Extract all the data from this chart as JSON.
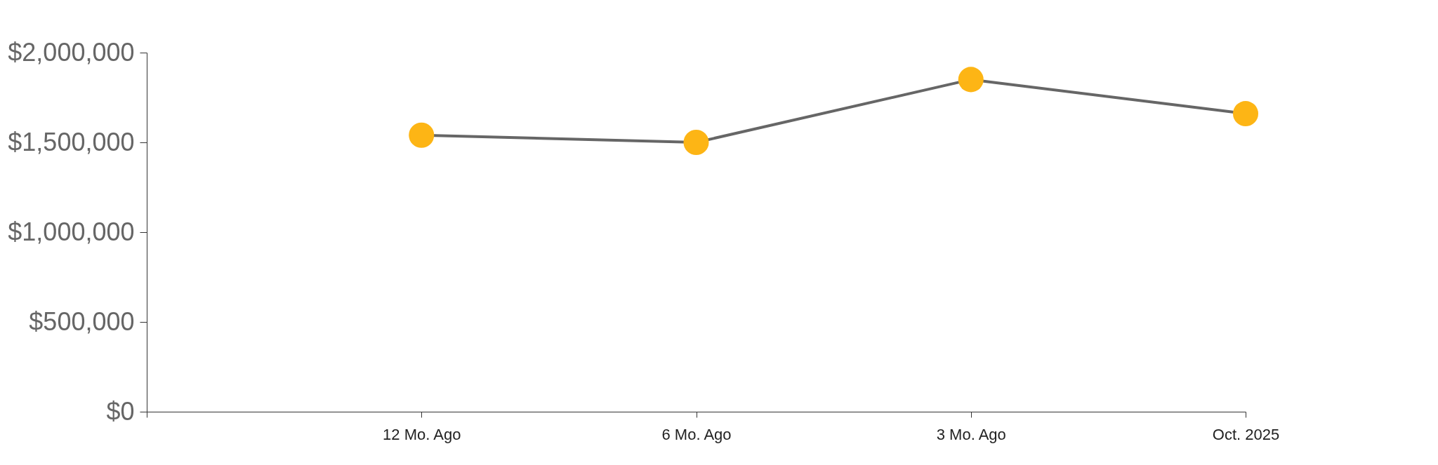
{
  "chart_data": {
    "type": "line",
    "categories": [
      null,
      "12 Mo. Ago",
      "6 Mo. Ago",
      "3 Mo. Ago",
      "Oct. 2025"
    ],
    "series": [
      {
        "color": "#666666",
        "colors": [
          "#fdb515",
          "#fdb515",
          "#fdb515",
          "#fdb515",
          "#fdb515"
        ],
        "values": [
          null,
          1540000,
          1500000,
          1850000,
          1660000
        ]
      }
    ],
    "marker": "circle",
    "ylim": [
      0,
      2000000
    ],
    "yticks": [
      {
        "value": 0,
        "label": "$0"
      },
      {
        "value": 500000,
        "label": "$500,000"
      },
      {
        "value": 1000000,
        "label": "$1,000,000"
      },
      {
        "value": 1500000,
        "label": "$1,500,000"
      },
      {
        "value": 2000000,
        "label": "$2,000,000"
      }
    ],
    "grid": false,
    "legend": false
  }
}
